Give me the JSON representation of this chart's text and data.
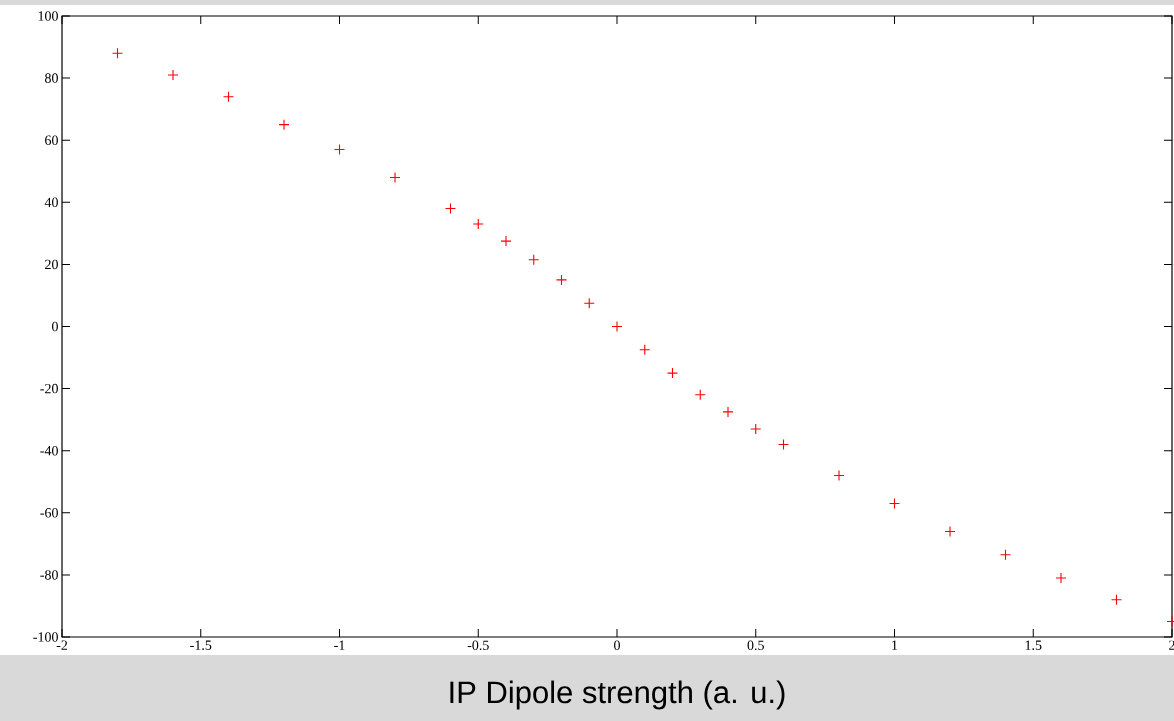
{
  "chart_data": {
    "type": "scatter",
    "xlabel": "IP Dipole strength (a. u.)",
    "x": [
      -1.8,
      -1.6,
      -1.4,
      -1.2,
      -1.0,
      -0.8,
      -0.6,
      -0.5,
      -0.4,
      -0.3,
      -0.2,
      -0.1,
      0,
      0.1,
      0.2,
      0.3,
      0.4,
      0.5,
      0.6,
      0.8,
      1.0,
      1.2,
      1.4,
      1.6,
      1.8,
      2.0
    ],
    "series": [
      {
        "color": "#ff0000",
        "values": [
          88,
          81,
          74,
          65,
          57,
          48,
          38,
          33,
          27.5,
          21.5,
          15,
          7.5,
          0,
          -7.5,
          -15,
          -22,
          -27.5,
          -33,
          -38,
          -48,
          -57,
          -66,
          -73.5,
          -81,
          -88,
          -95
        ]
      }
    ],
    "marker": "cross",
    "grid": false,
    "xlim": [
      -2,
      2
    ],
    "ylim": [
      -100,
      100
    ],
    "xticks": [
      -2,
      -1.5,
      -1,
      -0.5,
      0,
      0.5,
      1,
      1.5,
      2
    ],
    "yticks": [
      -100,
      -80,
      -60,
      -40,
      -20,
      0,
      20,
      40,
      60,
      80,
      100
    ]
  }
}
